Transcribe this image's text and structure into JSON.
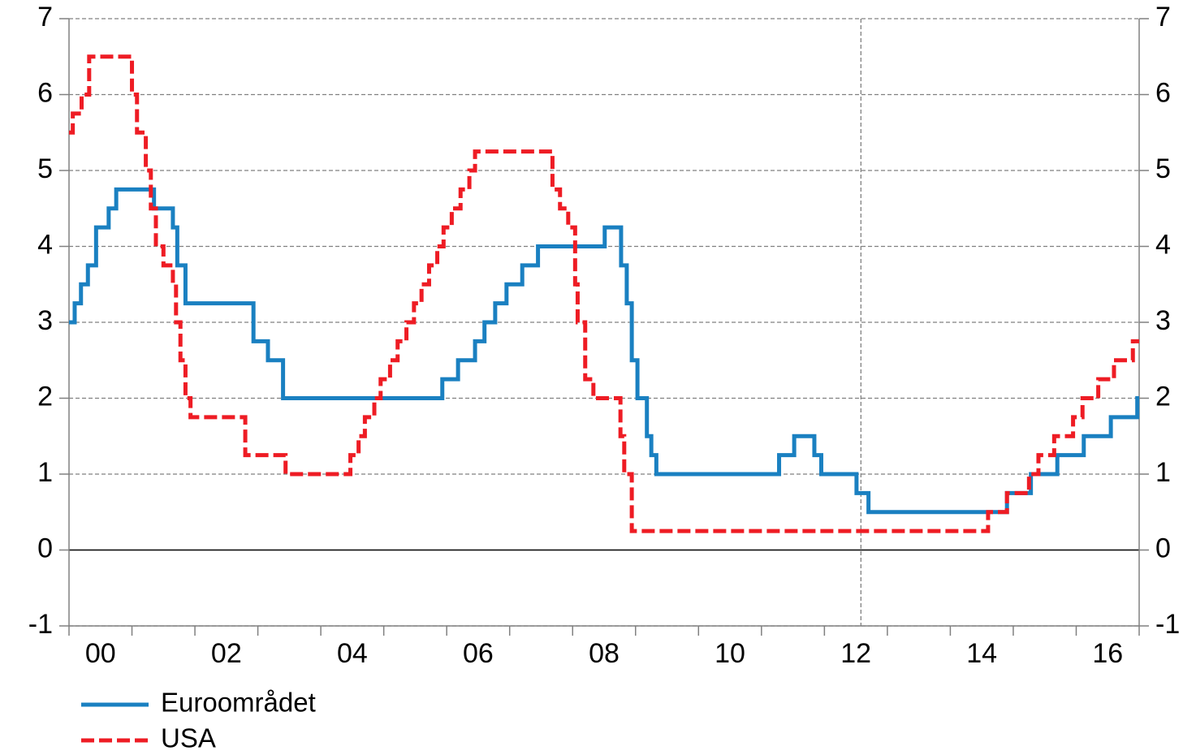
{
  "chart_data": {
    "type": "step",
    "xlim": [
      2000,
      2017
    ],
    "xticks": [
      2000,
      2001,
      2002,
      2003,
      2004,
      2005,
      2006,
      2007,
      2008,
      2009,
      2010,
      2011,
      2012,
      2013,
      2014,
      2015,
      2016,
      2017
    ],
    "xtick_labels": [
      {
        "value": 2000.5,
        "label": "00"
      },
      {
        "value": 2002.5,
        "label": "02"
      },
      {
        "value": 2004.5,
        "label": "04"
      },
      {
        "value": 2006.5,
        "label": "06"
      },
      {
        "value": 2008.5,
        "label": "08"
      },
      {
        "value": 2010.5,
        "label": "10"
      },
      {
        "value": 2012.5,
        "label": "12"
      },
      {
        "value": 2014.5,
        "label": "14"
      },
      {
        "value": 2016.5,
        "label": "16"
      }
    ],
    "ylim": [
      -1,
      7
    ],
    "yticks": [
      -1,
      0,
      1,
      2,
      3,
      4,
      5,
      6,
      7
    ],
    "y2lim": [
      -1,
      7
    ],
    "y2ticks": [
      -1,
      0,
      1,
      2,
      3,
      4,
      5,
      6,
      7
    ],
    "grid": true,
    "vline": 2012.58,
    "legend": "bottom-left",
    "series": [
      {
        "name": "Euroområdet",
        "color": "#1a80c1",
        "x": [
          2000.0,
          2000.09,
          2000.19,
          2000.3,
          2000.43,
          2000.63,
          2000.75,
          2001.35,
          2001.65,
          2001.72,
          2001.85,
          2002.93,
          2003.16,
          2003.4,
          2005.93,
          2006.18,
          2006.45,
          2006.6,
          2006.77,
          2006.95,
          2007.2,
          2007.45,
          2008.51,
          2008.77,
          2008.86,
          2008.94,
          2009.03,
          2009.18,
          2009.25,
          2009.33,
          2011.28,
          2011.52,
          2011.84,
          2011.95,
          2012.51,
          2012.7,
          2014.9,
          2015.28,
          2015.7,
          2016.12,
          2016.55,
          2016.97,
          2017.0
        ],
        "values": [
          3.0,
          3.25,
          3.5,
          3.75,
          4.25,
          4.5,
          4.75,
          4.5,
          4.25,
          3.75,
          3.25,
          2.75,
          2.5,
          2.0,
          2.25,
          2.5,
          2.75,
          3.0,
          3.25,
          3.5,
          3.75,
          4.0,
          4.25,
          3.75,
          3.25,
          2.5,
          2.0,
          1.5,
          1.25,
          1.0,
          1.25,
          1.5,
          1.25,
          1.0,
          0.75,
          0.5,
          0.75,
          1.0,
          1.25,
          1.5,
          1.75,
          2.0,
          2.0
        ]
      },
      {
        "name": "USA",
        "color": "#ee1c24",
        "x": [
          2000.0,
          2000.06,
          2000.2,
          2000.32,
          2001.0,
          2001.08,
          2001.22,
          2001.3,
          2001.38,
          2001.5,
          2001.65,
          2001.7,
          2001.77,
          2001.85,
          2001.93,
          2002.8,
          2003.44,
          2004.47,
          2004.6,
          2004.7,
          2004.85,
          2004.95,
          2005.1,
          2005.22,
          2005.36,
          2005.48,
          2005.6,
          2005.72,
          2005.85,
          2005.95,
          2006.08,
          2006.22,
          2006.36,
          2006.45,
          2007.68,
          2007.8,
          2007.93,
          2008.04,
          2008.08,
          2008.2,
          2008.33,
          2008.76,
          2008.82,
          2008.94,
          2014.6,
          2014.9,
          2015.25,
          2015.4,
          2015.65,
          2015.95,
          2016.1,
          2016.35,
          2016.6,
          2016.9,
          2017.0
        ],
        "values": [
          5.5,
          5.75,
          6.0,
          6.5,
          6.0,
          5.5,
          5.0,
          4.5,
          4.0,
          3.75,
          3.5,
          3.0,
          2.5,
          2.0,
          1.75,
          1.25,
          1.0,
          1.25,
          1.5,
          1.75,
          2.0,
          2.25,
          2.5,
          2.75,
          3.0,
          3.25,
          3.5,
          3.75,
          4.0,
          4.25,
          4.5,
          4.75,
          5.0,
          5.25,
          4.75,
          4.5,
          4.25,
          3.5,
          3.0,
          2.25,
          2.0,
          1.5,
          1.0,
          0.25,
          0.5,
          0.75,
          1.0,
          1.25,
          1.5,
          1.75,
          2.0,
          2.25,
          2.5,
          2.75,
          2.75
        ]
      }
    ]
  }
}
